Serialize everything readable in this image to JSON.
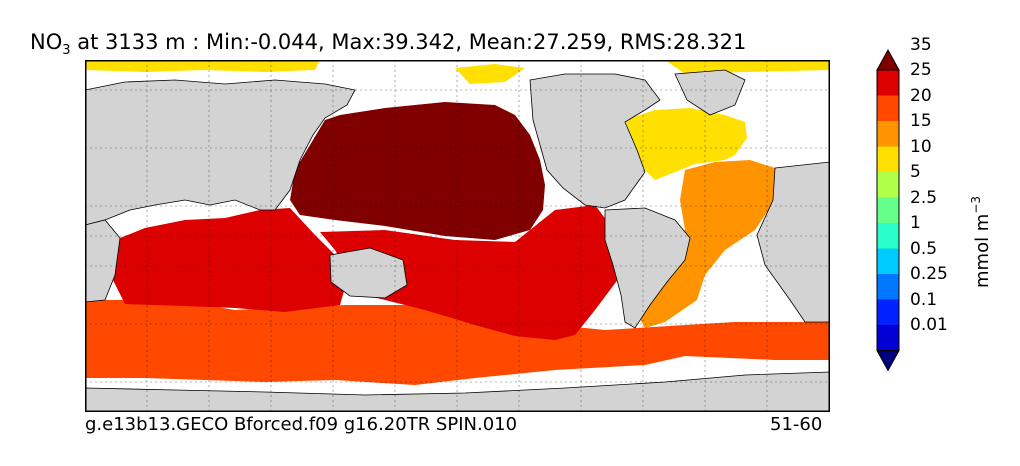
{
  "title": {
    "prefix": "NO",
    "sub": "3",
    "rest": " at 3133 m : Min:-0.044, Max:39.342, Mean:27.259, RMS:28.321"
  },
  "footer": {
    "left": "g.e13b13.GECO Bforced.f09 g16.20TR SPIN.010",
    "right": "51-60"
  },
  "colorbar": {
    "label_main": "mmol m",
    "label_sup": "−3",
    "ticks": [
      "0.01",
      "0.1",
      "0.25",
      "0.5",
      "1",
      "2.5",
      "5",
      "10",
      "15",
      "20",
      "25",
      "35"
    ],
    "colors": [
      "#00007f",
      "#0000d4",
      "#0022ff",
      "#0077ff",
      "#00ccff",
      "#2affcc",
      "#66ff8a",
      "#b0ff48",
      "#ffe000",
      "#ff9400",
      "#ff4800",
      "#dd0000",
      "#800000"
    ]
  },
  "map": {
    "land_color": "#d3d3d3",
    "nodata_color": "#ffffff"
  }
}
